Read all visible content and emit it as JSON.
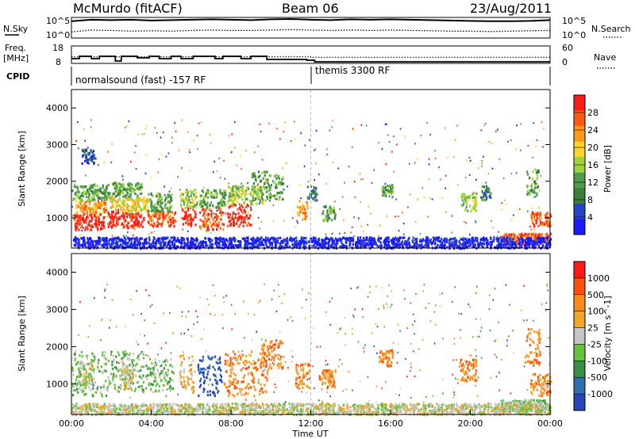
{
  "header": {
    "station": "McMurdo (fitACF)",
    "beam": "Beam 06",
    "date": "23/Aug/2011"
  },
  "top_panels": {
    "nsky_label": "N.Sky",
    "nsky_ticks": [
      "10^5",
      "10^0"
    ],
    "nsearch_label": "N.Search",
    "nsearch_ticks": [
      "10^5",
      "10^0"
    ],
    "freq_label_1": "Freq.",
    "freq_label_2": "[MHz]",
    "freq_ticks": [
      "18",
      "8"
    ],
    "nave_label": "Nave",
    "nave_ticks": [
      "60",
      "0"
    ],
    "cpid_label": "CPID",
    "cpid_entries": [
      "normalsound (fast) -157 RF",
      "themis 3300 RF"
    ]
  },
  "colors": {
    "power": [
      "#1a1aff",
      "#2346c8",
      "#3c7f3c",
      "#4f9c4f",
      "#9ad53a",
      "#ffd42a",
      "#ff9a1a",
      "#ff5a10",
      "#ff1a1a"
    ],
    "velocity": [
      "#2845b8",
      "#2f6fb0",
      "#3b8f48",
      "#66c23a",
      "#c6c6c6",
      "#f0a62a",
      "#ff8a1a",
      "#ff5010",
      "#ff1a1a"
    ]
  },
  "chart_data": [
    {
      "type": "line",
      "title": "",
      "series": [
        {
          "name": "N.Sky",
          "style": "solid",
          "values": [
            4.2,
            4.6,
            4.5,
            4.6,
            4.4,
            4.5,
            4.6,
            4.7,
            4.6,
            4.5,
            4.7,
            4.8,
            4.6,
            4.5,
            4.7,
            4.6,
            4.7,
            4.6,
            4.5,
            4.4,
            4.3,
            4.2,
            4.2,
            4.3,
            4.5
          ]
        },
        {
          "name": "N.Search",
          "style": "dotted",
          "values": [
            1.4,
            1.9,
            1.8,
            1.6,
            1.7,
            1.6,
            1.8,
            1.9,
            1.8,
            1.8,
            1.9,
            2.0,
            1.9,
            1.8,
            1.9,
            1.8,
            1.9,
            1.8,
            1.7,
            1.6,
            1.6,
            1.5,
            1.6,
            1.7,
            1.8
          ]
        }
      ],
      "x": [
        0,
        1,
        2,
        3,
        4,
        5,
        6,
        7,
        8,
        9,
        10,
        11,
        12,
        13,
        14,
        15,
        16,
        17,
        18,
        19,
        20,
        21,
        22,
        23,
        24
      ],
      "ylim": [
        0,
        5
      ]
    },
    {
      "type": "line",
      "series": [
        {
          "name": "Freq.",
          "style": "solid",
          "steps": [
            [
              0.0,
              10.5
            ],
            [
              0.4,
              12.0
            ],
            [
              1.0,
              10.5
            ],
            [
              1.4,
              12.0
            ],
            [
              2.2,
              9.0
            ],
            [
              2.5,
              12.0
            ],
            [
              3.3,
              11.0
            ],
            [
              3.9,
              12.0
            ],
            [
              4.4,
              10.5
            ],
            [
              5.0,
              12.0
            ],
            [
              5.5,
              10.5
            ],
            [
              6.1,
              12.0
            ],
            [
              7.2,
              10.5
            ],
            [
              7.6,
              12.0
            ],
            [
              8.5,
              10.5
            ],
            [
              9.0,
              12.0
            ],
            [
              9.8,
              10.0
            ],
            [
              11.8,
              9.5
            ],
            [
              12.2,
              8.5
            ],
            [
              24.0,
              8.5
            ]
          ]
        },
        {
          "name": "Nave",
          "style": "dotted",
          "steps": [
            [
              0.0,
              22
            ],
            [
              11.8,
              22
            ],
            [
              12.0,
              20
            ],
            [
              24.0,
              20
            ]
          ]
        }
      ],
      "freq_ylim": [
        8,
        18
      ],
      "nave_ylim": [
        0,
        60
      ]
    },
    {
      "type": "heatmap",
      "title": "Power [dB]",
      "xlabel": "",
      "ylabel": "Slant Range [km]",
      "xlim": [
        0,
        24
      ],
      "ylim": [
        180,
        4500
      ],
      "yticks": [
        1000,
        2000,
        3000,
        4000
      ],
      "colorbar_ticks": [
        "28",
        "24",
        "20",
        "16",
        "12",
        "8",
        "4"
      ],
      "colorbar_label": "Power [dB]",
      "blobs": [
        {
          "x0": 0.1,
          "x1": 1.6,
          "y0": 700,
          "y1": 1150,
          "v": 8
        },
        {
          "x0": 0.2,
          "x1": 1.7,
          "y0": 1150,
          "y1": 1500,
          "v": 6
        },
        {
          "x0": 0.0,
          "x1": 1.9,
          "y0": 1500,
          "y1": 1950,
          "v": 3
        },
        {
          "x0": 0.5,
          "x1": 1.2,
          "y0": 2500,
          "y1": 2900,
          "v": 1
        },
        {
          "x0": 1.8,
          "x1": 3.6,
          "y0": 750,
          "y1": 1200,
          "v": 8
        },
        {
          "x0": 1.9,
          "x1": 3.8,
          "y0": 1200,
          "y1": 1600,
          "v": 5
        },
        {
          "x0": 2.0,
          "x1": 3.5,
          "y0": 1600,
          "y1": 2000,
          "v": 3
        },
        {
          "x0": 3.8,
          "x1": 5.2,
          "y0": 800,
          "y1": 1200,
          "v": 7
        },
        {
          "x0": 3.8,
          "x1": 5.0,
          "y0": 1200,
          "y1": 1700,
          "v": 3
        },
        {
          "x0": 5.5,
          "x1": 6.2,
          "y0": 800,
          "y1": 1300,
          "v": 8
        },
        {
          "x0": 5.4,
          "x1": 6.3,
          "y0": 1300,
          "y1": 1800,
          "v": 4
        },
        {
          "x0": 6.4,
          "x1": 7.6,
          "y0": 700,
          "y1": 1300,
          "v": 7
        },
        {
          "x0": 6.4,
          "x1": 7.7,
          "y0": 1300,
          "y1": 1800,
          "v": 3
        },
        {
          "x0": 7.8,
          "x1": 9.0,
          "y0": 800,
          "y1": 1400,
          "v": 8
        },
        {
          "x0": 7.8,
          "x1": 9.6,
          "y0": 1400,
          "y1": 1900,
          "v": 4
        },
        {
          "x0": 9.0,
          "x1": 10.6,
          "y0": 1500,
          "y1": 2300,
          "v": 3
        },
        {
          "x0": 11.3,
          "x1": 11.8,
          "y0": 1000,
          "y1": 1500,
          "v": 6
        },
        {
          "x0": 11.8,
          "x1": 12.3,
          "y0": 1500,
          "y1": 1900,
          "v": 2
        },
        {
          "x0": 12.5,
          "x1": 13.2,
          "y0": 950,
          "y1": 1350,
          "v": 3
        },
        {
          "x0": 15.5,
          "x1": 16.1,
          "y0": 1600,
          "y1": 1950,
          "v": 3
        },
        {
          "x0": 19.5,
          "x1": 20.3,
          "y0": 1200,
          "y1": 1700,
          "v": 4
        },
        {
          "x0": 20.5,
          "x1": 21.0,
          "y0": 1500,
          "y1": 1900,
          "v": 2
        },
        {
          "x0": 22.8,
          "x1": 23.4,
          "y0": 1600,
          "y1": 2400,
          "v": 3
        },
        {
          "x0": 23.0,
          "x1": 24.0,
          "y0": 800,
          "y1": 1200,
          "v": 7
        },
        {
          "x0": 21.5,
          "x1": 24.0,
          "y0": 300,
          "y1": 600,
          "v": 7
        },
        {
          "x0": 0.0,
          "x1": 24.0,
          "y0": 200,
          "y1": 500,
          "v": 0
        }
      ]
    },
    {
      "type": "heatmap",
      "title": "Velocity [m s^-1]",
      "xlabel": "Time UT",
      "ylabel": "Slant Range [km]",
      "xlim": [
        0,
        24
      ],
      "ylim": [
        180,
        4500
      ],
      "xticks": [
        "00:00",
        "04:00",
        "08:00",
        "12:00",
        "16:00",
        "20:00",
        "00:00"
      ],
      "yticks": [
        1000,
        2000,
        3000,
        4000
      ],
      "colorbar_ticks": [
        "1000",
        "500",
        "100",
        "25",
        "-25",
        "-100",
        "-500",
        "-1000"
      ],
      "colorbar_label": "Velocity [m s^-1]",
      "blobs": [
        {
          "x0": 0.0,
          "x1": 1.8,
          "y0": 700,
          "y1": 1900,
          "v": 3
        },
        {
          "x0": 0.3,
          "x1": 1.1,
          "y0": 1000,
          "y1": 1600,
          "v": 4
        },
        {
          "x0": 1.8,
          "x1": 3.6,
          "y0": 800,
          "y1": 1900,
          "v": 3
        },
        {
          "x0": 2.4,
          "x1": 3.1,
          "y0": 900,
          "y1": 1500,
          "v": 4
        },
        {
          "x0": 3.7,
          "x1": 5.1,
          "y0": 800,
          "y1": 1700,
          "v": 3
        },
        {
          "x0": 5.4,
          "x1": 6.1,
          "y0": 800,
          "y1": 1800,
          "v": 5
        },
        {
          "x0": 6.3,
          "x1": 7.5,
          "y0": 700,
          "y1": 1800,
          "v": 0
        },
        {
          "x0": 7.6,
          "x1": 9.8,
          "y0": 700,
          "y1": 1900,
          "v": 6
        },
        {
          "x0": 9.5,
          "x1": 10.6,
          "y0": 1400,
          "y1": 2200,
          "v": 6
        },
        {
          "x0": 11.2,
          "x1": 11.9,
          "y0": 900,
          "y1": 1600,
          "v": 6
        },
        {
          "x0": 12.4,
          "x1": 13.2,
          "y0": 900,
          "y1": 1400,
          "v": 6
        },
        {
          "x0": 15.4,
          "x1": 16.1,
          "y0": 1500,
          "y1": 1950,
          "v": 6
        },
        {
          "x0": 19.4,
          "x1": 20.3,
          "y0": 1100,
          "y1": 1700,
          "v": 6
        },
        {
          "x0": 22.7,
          "x1": 23.5,
          "y0": 1500,
          "y1": 2500,
          "v": 6
        },
        {
          "x0": 23.0,
          "x1": 24.0,
          "y0": 700,
          "y1": 1300,
          "v": 6
        },
        {
          "x0": 21.5,
          "x1": 24.0,
          "y0": 300,
          "y1": 600,
          "v": 3
        },
        {
          "x0": 0.0,
          "x1": 24.0,
          "y0": 200,
          "y1": 500,
          "v": 4
        }
      ]
    }
  ]
}
